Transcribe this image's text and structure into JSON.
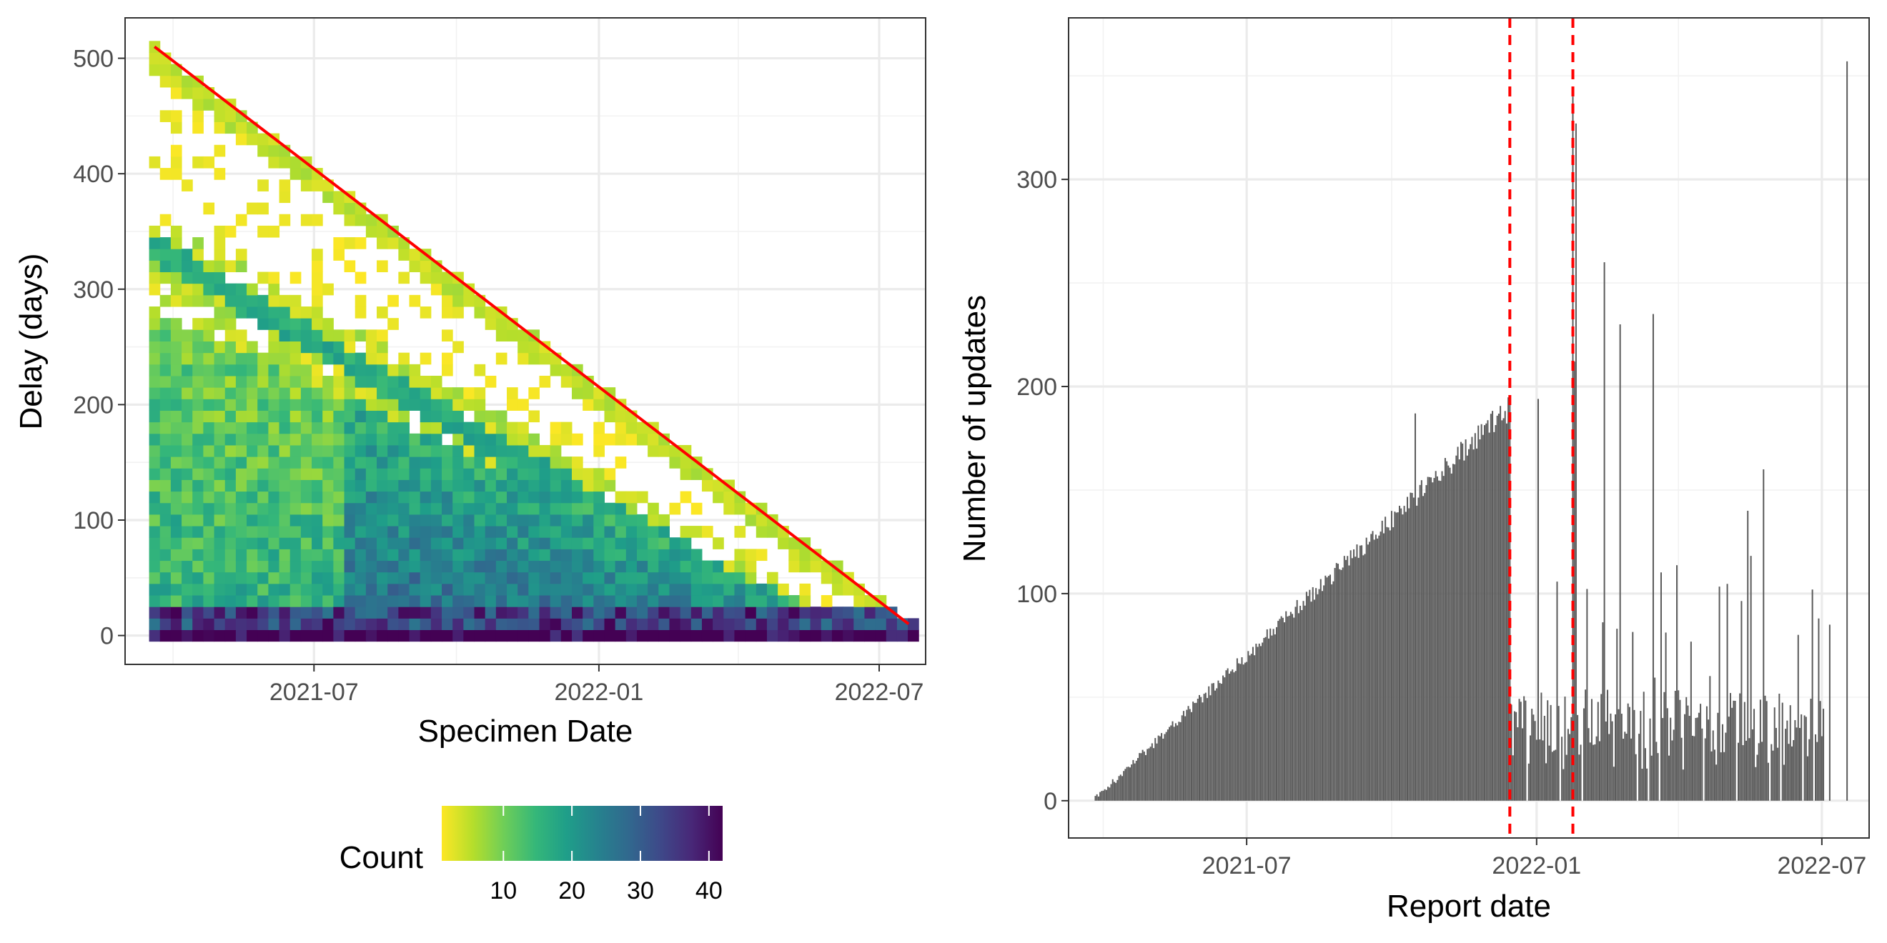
{
  "chart_data": [
    {
      "type": "heatmap",
      "xlabel": "Specimen Date",
      "ylabel": "Delay (days)",
      "x_ticks": [
        "2021-07",
        "2022-01",
        "2022-07"
      ],
      "y_ticks": [
        0,
        100,
        200,
        300,
        400,
        500
      ],
      "xlim": [
        "2021-03-01",
        "2022-07-31"
      ],
      "ylim": [
        -25,
        535
      ],
      "x_start": "2021-03-20",
      "x_end": "2022-07-20",
      "bin_days": 7,
      "bin_delay": 10,
      "max_delay_line": {
        "from": [
          "2021-03-20",
          510
        ],
        "to": [
          "2022-07-20",
          10
        ],
        "color": "#ff0000"
      },
      "legend": {
        "title": "Count",
        "ticks": [
          10,
          20,
          30,
          40
        ],
        "range": [
          1,
          42
        ],
        "position": "bottom"
      },
      "colorscale": [
        "#fde725",
        "#b5de2b",
        "#6ece58",
        "#35b779",
        "#1f9e89",
        "#26828e",
        "#31688e",
        "#3e4989",
        "#482878",
        "#440154"
      ],
      "grid": true
    },
    {
      "type": "bar",
      "xlabel": "Report date",
      "ylabel": "Number of updates",
      "x_ticks": [
        "2021-07",
        "2022-01",
        "2022-07"
      ],
      "y_ticks": [
        0,
        100,
        200,
        300
      ],
      "xlim": [
        "2021-03-10",
        "2022-07-31"
      ],
      "ylim": [
        -18,
        378
      ],
      "bar_color": "#595959",
      "vlines": {
        "dates": [
          "2021-12-15",
          "2022-01-24"
        ],
        "color": "#ff0000",
        "style": "dashed"
      },
      "series": [
        {
          "start": "2021-03-27",
          "end": "2021-12-15",
          "y0": 1,
          "y1": 190,
          "sd": 5
        },
        {
          "start": "2021-12-16",
          "end": "2022-07-02",
          "base": 40,
          "sd": 14
        },
        {
          "date": "2022-01-24",
          "value": 340
        },
        {
          "date": "2022-01-25",
          "value": 212
        },
        {
          "date": "2022-01-26",
          "value": 327
        },
        {
          "date": "2022-01-02",
          "value": 194
        },
        {
          "date": "2022-02-13",
          "value": 260
        },
        {
          "date": "2022-02-23",
          "value": 230
        },
        {
          "date": "2022-03-16",
          "value": 235
        },
        {
          "date": "2022-05-25",
          "value": 160
        },
        {
          "date": "2022-05-15",
          "value": 140
        },
        {
          "date": "2022-07-17",
          "value": 357
        },
        {
          "date": "2022-07-06",
          "value": 85
        },
        {
          "date": "2022-06-29",
          "value": 88
        },
        {
          "date": "2021-10-16",
          "value": 187
        }
      ],
      "grid": true
    }
  ]
}
